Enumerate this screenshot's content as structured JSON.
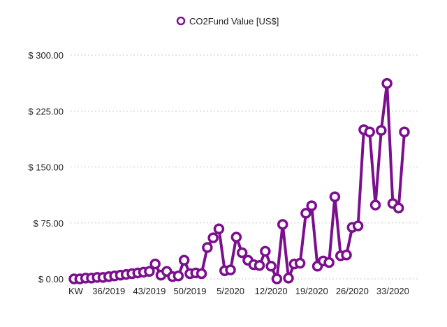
{
  "chart_data": {
    "type": "line",
    "title": "",
    "legend": {
      "label": "CO2Fund Value [US$]",
      "position": "top-center"
    },
    "xlabel": "",
    "ylabel": "",
    "ylim": [
      0,
      300
    ],
    "grid": true,
    "color": "#7b0f8e",
    "y_ticks": [
      {
        "value": 0,
        "label": "$ 0.00"
      },
      {
        "value": 75,
        "label": "$ 75.00"
      },
      {
        "value": 150,
        "label": "$ 150.00"
      },
      {
        "value": 225,
        "label": "$ 225.00"
      },
      {
        "value": 300,
        "label": "$ 300.00"
      }
    ],
    "x_ticks": [
      {
        "index": 0,
        "label": "KW"
      },
      {
        "index": 6,
        "label": "36/2019"
      },
      {
        "index": 13,
        "label": "43/2019"
      },
      {
        "index": 20,
        "label": "50/2019"
      },
      {
        "index": 27,
        "label": "5/2020"
      },
      {
        "index": 34,
        "label": "12/2020"
      },
      {
        "index": 41,
        "label": "19/2020"
      },
      {
        "index": 48,
        "label": "26/2020"
      },
      {
        "index": 55,
        "label": "33/2020"
      }
    ],
    "series": [
      {
        "name": "CO2Fund Value [US$]",
        "values": [
          0,
          0,
          1,
          1,
          2,
          2,
          3,
          4,
          5,
          6,
          7,
          8,
          9,
          10,
          20,
          5,
          10,
          3,
          4,
          25,
          7,
          8,
          7,
          42,
          55,
          67,
          11,
          12,
          56,
          35,
          25,
          19,
          18,
          37,
          17,
          0,
          73,
          1,
          20,
          21,
          88,
          98,
          17,
          24,
          22,
          110,
          31,
          32,
          69,
          71,
          200,
          197,
          99,
          199,
          262,
          101,
          95,
          197
        ]
      }
    ]
  }
}
